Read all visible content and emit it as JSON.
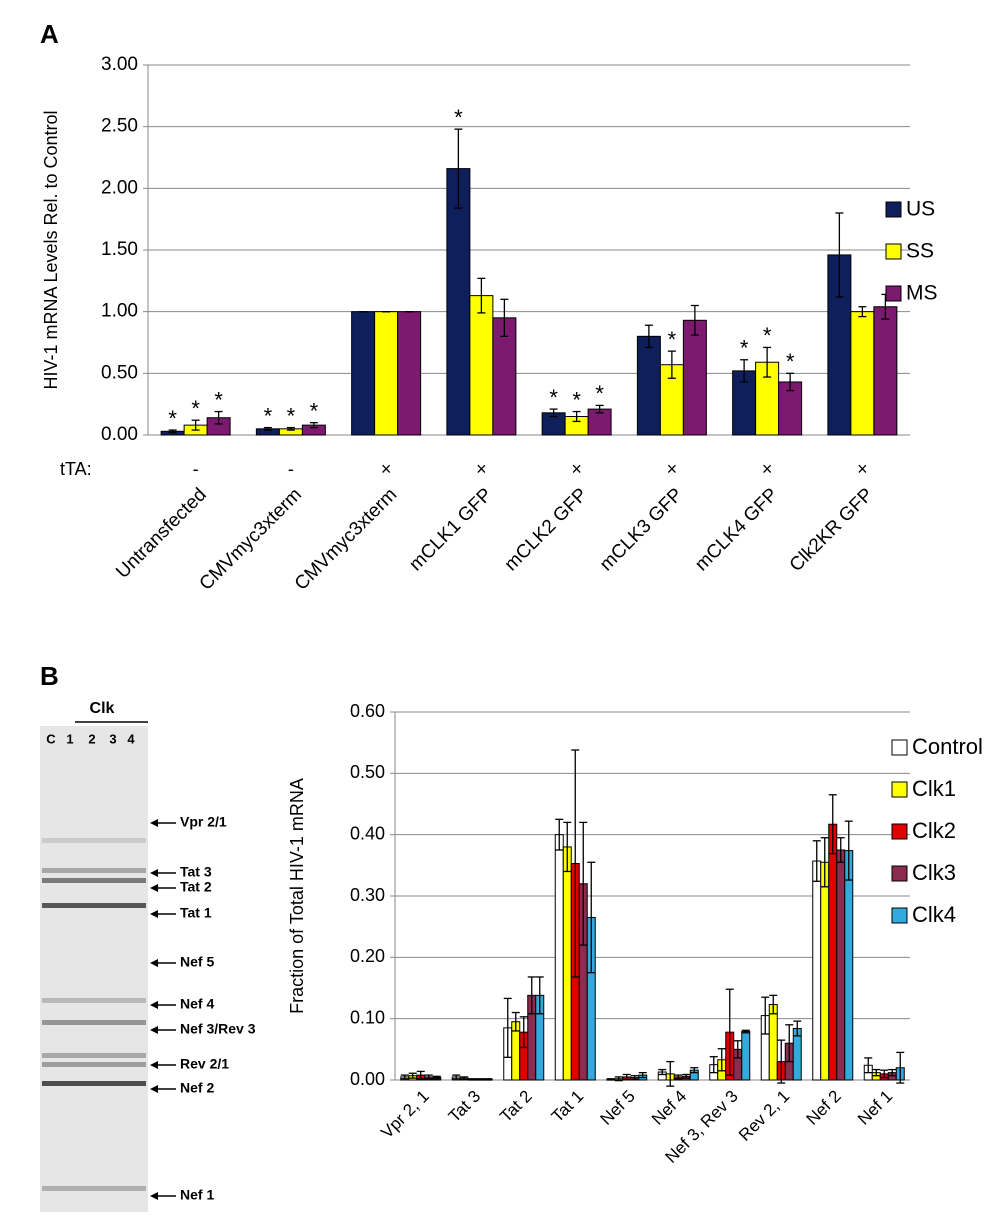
{
  "panels": [
    "A",
    "B"
  ],
  "gel": {
    "group_label": "Clk",
    "lanes": [
      "C",
      "1",
      "2",
      "3",
      "4"
    ],
    "bands": [
      "Vpr 2/1",
      "Tat 3",
      "Tat 2",
      "Tat 1",
      "Nef 5",
      "Nef 4",
      "Nef 3/Rev 3",
      "Rev 2/1",
      "Nef 2",
      "Nef 1"
    ]
  },
  "chart_data": [
    {
      "type": "bar",
      "y_label": "HIV-1 mRNA Levels Rel. to Control",
      "categories": [
        "Untransfected",
        "CMVmyc3xterm",
        "CMVmyc3xterm",
        "mCLK1 GFP",
        "mCLK2 GFP",
        "mCLK3 GFP",
        "mCLK4 GFP",
        "Clk2KR GFP"
      ],
      "row_label": "tTA:",
      "row_values": [
        "-",
        "-",
        "×",
        "×",
        "×",
        "×",
        "×",
        "×"
      ],
      "series": [
        {
          "name": "US",
          "color": "#0f1f5c",
          "values": [
            0.03,
            0.05,
            1.0,
            2.16,
            0.18,
            0.8,
            0.52,
            1.46
          ],
          "errors": [
            0.01,
            0.01,
            0,
            0.32,
            0.03,
            0.09,
            0.09,
            0.34
          ],
          "markers": [
            "*",
            "*",
            null,
            "*",
            "*",
            null,
            "*",
            null
          ]
        },
        {
          "name": "SS",
          "color": "#ffff00",
          "values": [
            0.08,
            0.05,
            1.0,
            1.13,
            0.15,
            0.57,
            0.59,
            1.0
          ],
          "errors": [
            0.04,
            0.01,
            0,
            0.14,
            0.04,
            0.11,
            0.12,
            0.04
          ],
          "markers": [
            "*",
            "*",
            null,
            null,
            "*",
            "*",
            "*",
            null
          ]
        },
        {
          "name": "MS",
          "color": "#7b1a6e",
          "values": [
            0.14,
            0.08,
            1.0,
            0.95,
            0.21,
            0.93,
            0.43,
            1.04
          ],
          "errors": [
            0.05,
            0.02,
            0,
            0.15,
            0.03,
            0.12,
            0.07,
            0.1
          ],
          "markers": [
            "*",
            "*",
            null,
            null,
            "*",
            null,
            "*",
            null
          ]
        }
      ],
      "ylim": [
        0,
        3
      ],
      "yticks": [
        {
          "value": 0,
          "label": "0.00"
        },
        {
          "value": 0.5,
          "label": "0.50"
        },
        {
          "value": 1,
          "label": "1.00"
        },
        {
          "value": 1.5,
          "label": "1.50"
        },
        {
          "value": 2,
          "label": "2.00"
        },
        {
          "value": 2.5,
          "label": "2.50"
        },
        {
          "value": 3,
          "label": "3.00"
        }
      ],
      "grid": true,
      "legend": "right"
    },
    {
      "type": "bar",
      "y_label": "Fraction of Total HIV-1 mRNA",
      "categories": [
        "Vpr 2, 1",
        "Tat 3",
        "Tat 2",
        "Tat 1",
        "Nef 5",
        "Nef 4",
        "Nef 3, Rev 3",
        "Rev 2, 1",
        "Nef 2",
        "Nef 1"
      ],
      "series": [
        {
          "name": "Control",
          "color": "#ffffff",
          "values": [
            0.005,
            0.005,
            0.085,
            0.4,
            0.001,
            0.013,
            0.025,
            0.105,
            0.357,
            0.024
          ],
          "errors": [
            0.003,
            0.003,
            0.048,
            0.025,
            0.001,
            0.004,
            0.013,
            0.03,
            0.033,
            0.012
          ]
        },
        {
          "name": "Clk1",
          "color": "#ffff00",
          "values": [
            0.007,
            0.003,
            0.095,
            0.38,
            0.002,
            0.01,
            0.033,
            0.123,
            0.355,
            0.012
          ],
          "errors": [
            0.004,
            0.002,
            0.015,
            0.04,
            0.003,
            0.02,
            0.018,
            0.015,
            0.04,
            0.005
          ]
        },
        {
          "name": "Clk2",
          "color": "#e00000",
          "values": [
            0.008,
            0.001,
            0.078,
            0.353,
            0.005,
            0.005,
            0.078,
            0.03,
            0.417,
            0.01
          ],
          "errors": [
            0.006,
            0.001,
            0.025,
            0.185,
            0.004,
            0.003,
            0.07,
            0.035,
            0.048,
            0.006
          ]
        },
        {
          "name": "Clk3",
          "color": "#8b2d4f",
          "values": [
            0.005,
            0.001,
            0.138,
            0.32,
            0.004,
            0.006,
            0.05,
            0.06,
            0.375,
            0.012
          ],
          "errors": [
            0.003,
            0.001,
            0.03,
            0.1,
            0.003,
            0.003,
            0.014,
            0.03,
            0.02,
            0.005
          ]
        },
        {
          "name": "Clk4",
          "color": "#33aadd",
          "values": [
            0.004,
            0.001,
            0.138,
            0.265,
            0.008,
            0.016,
            0.079,
            0.084,
            0.374,
            0.02
          ],
          "errors": [
            0.002,
            0.001,
            0.03,
            0.09,
            0.004,
            0.004,
            0.002,
            0.012,
            0.048,
            0.025
          ]
        }
      ],
      "ylim": [
        0,
        0.6
      ],
      "yticks": [
        {
          "value": 0,
          "label": "0.00"
        },
        {
          "value": 0.1,
          "label": "0.10"
        },
        {
          "value": 0.2,
          "label": "0.20"
        },
        {
          "value": 0.3,
          "label": "0.30"
        },
        {
          "value": 0.4,
          "label": "0.40"
        },
        {
          "value": 0.5,
          "label": "0.50"
        },
        {
          "value": 0.6,
          "label": "0.60"
        }
      ],
      "grid": true,
      "legend": "right"
    }
  ]
}
